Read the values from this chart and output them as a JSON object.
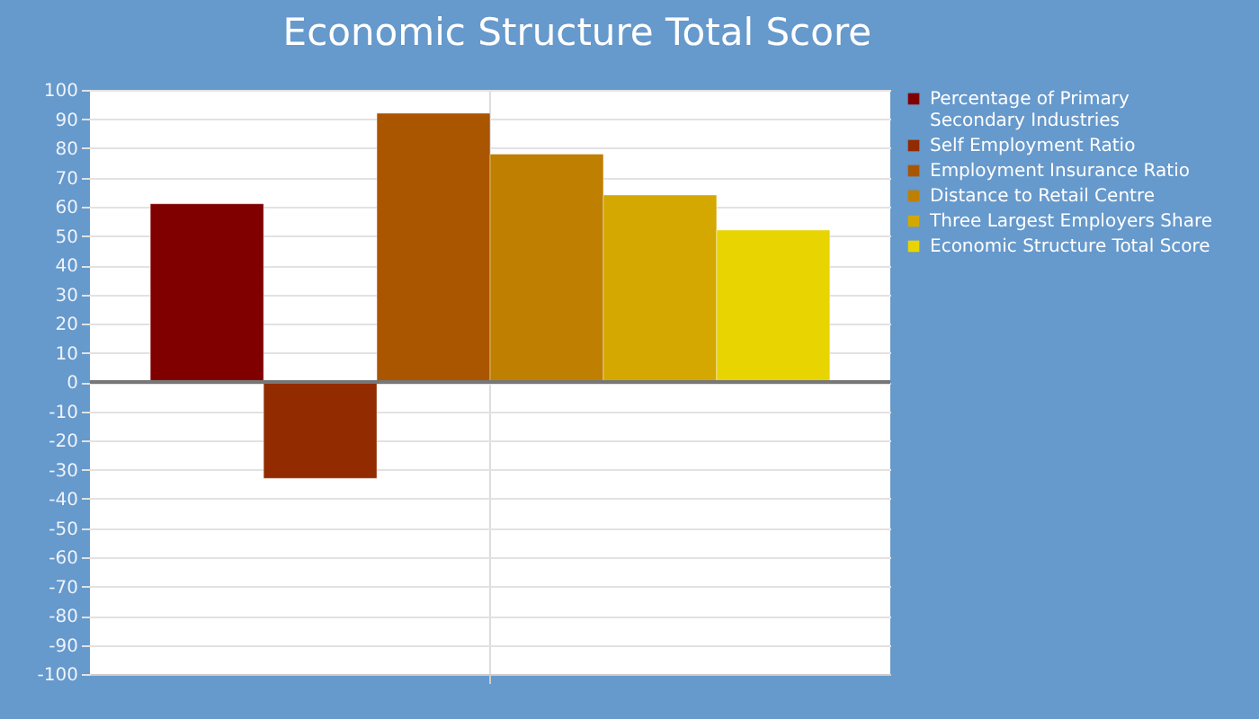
{
  "chart_data": {
    "type": "bar",
    "title": "Economic Structure Total Score",
    "categories": [
      null
    ],
    "series": [
      {
        "name": "Percentage of Primary Secondary Industries",
        "color": "#800000",
        "values": [
          61
        ]
      },
      {
        "name": "Self Employment Ratio",
        "color": "#922b00",
        "values": [
          -33
        ]
      },
      {
        "name": "Employment Insurance Ratio",
        "color": "#aa5500",
        "values": [
          92
        ]
      },
      {
        "name": "Distance to Retail Centre",
        "color": "#bf7f00",
        "values": [
          78
        ]
      },
      {
        "name": "Three Largest Employers Share",
        "color": "#d4a800",
        "values": [
          64
        ]
      },
      {
        "name": "Economic Structure Total Score",
        "color": "#e8d400",
        "values": [
          52
        ]
      }
    ],
    "ylim": [
      -100,
      100
    ],
    "yticks": [
      -100,
      -90,
      -80,
      -70,
      -60,
      -50,
      -40,
      -30,
      -20,
      -10,
      0,
      10,
      20,
      30,
      40,
      50,
      60,
      70,
      80,
      90,
      100
    ],
    "ref_lines": [
      {
        "axis": "y",
        "value": 0,
        "color": "#777777"
      }
    ],
    "grid": true,
    "legend": "right",
    "tick_labels": "y"
  }
}
